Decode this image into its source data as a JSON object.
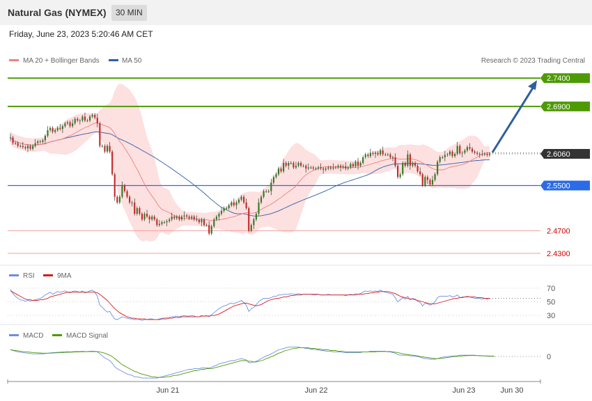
{
  "header": {
    "title": "Natural Gas (NYMEX)",
    "timeframe": "30 MIN",
    "datetime": "Friday, June 23, 2023 5:20:46 AM CET"
  },
  "colors": {
    "ma20": "#f08080",
    "bollinger_fill": "#fde0e0",
    "ma50": "#2f5ea8",
    "resistance": "#4e9a06",
    "support_blue": "#2b6be6",
    "support_red": "#e06060",
    "candle_up": "#2e7d1e",
    "candle_down": "#c62828",
    "current_price_bg": "#333333",
    "arrow": "#2f5e9e",
    "rsi": "#6c8ee0",
    "rsi_ma": "#d81b1b",
    "macd": "#6c8ee0",
    "macd_signal": "#4e9a06"
  },
  "chart_data": [
    {
      "type": "candlestick",
      "legend": [
        "MA 20 + Bollinger Bands",
        "MA 50"
      ],
      "credit": "Research © 2023 Trading Central",
      "x_ticks": [
        "Jun 21",
        "Jun 22",
        "Jun 23",
        "Jun 30"
      ],
      "ylim": [
        2.42,
        2.76
      ],
      "levels": [
        {
          "value": 2.74,
          "label": "2.7400",
          "kind": "resistance"
        },
        {
          "value": 2.69,
          "label": "2.6900",
          "kind": "resistance"
        },
        {
          "value": 2.606,
          "label": "2.6060",
          "kind": "current"
        },
        {
          "value": 2.55,
          "label": "2.5500",
          "kind": "support"
        },
        {
          "value": 2.47,
          "label": "2.4700",
          "kind": "minor"
        },
        {
          "value": 2.43,
          "label": "2.4300",
          "kind": "minor"
        }
      ],
      "close": [
        2.635,
        2.625,
        2.625,
        2.62,
        2.62,
        2.618,
        2.616,
        2.62,
        2.615,
        2.62,
        2.625,
        2.628,
        2.627,
        2.63,
        2.638,
        2.648,
        2.652,
        2.645,
        2.648,
        2.652,
        2.65,
        2.655,
        2.66,
        2.662,
        2.655,
        2.66,
        2.668,
        2.665,
        2.665,
        2.672,
        2.665,
        2.665,
        2.672,
        2.675,
        2.67,
        2.66,
        2.62,
        2.62,
        2.61,
        2.62,
        2.61,
        2.57,
        2.53,
        2.52,
        2.53,
        2.55,
        2.54,
        2.53,
        2.52,
        2.52,
        2.5,
        2.51,
        2.5,
        2.49,
        2.5,
        2.495,
        2.49,
        2.495,
        2.49,
        2.48,
        2.482,
        2.485,
        2.485,
        2.487,
        2.49,
        2.495,
        2.492,
        2.495,
        2.49,
        2.495,
        2.497,
        2.495,
        2.492,
        2.495,
        2.49,
        2.489,
        2.485,
        2.49,
        2.48,
        2.48,
        2.465,
        2.478,
        2.49,
        2.495,
        2.5,
        2.505,
        2.51,
        2.51,
        2.515,
        2.52,
        2.515,
        2.52,
        2.525,
        2.53,
        2.52,
        2.51,
        2.47,
        2.48,
        2.49,
        2.5,
        2.52,
        2.53,
        2.54,
        2.54,
        2.54,
        2.555,
        2.565,
        2.57,
        2.58,
        2.575,
        2.59,
        2.585,
        2.59,
        2.59,
        2.582,
        2.585,
        2.59,
        2.585,
        2.585,
        2.58,
        2.582,
        2.582,
        2.58,
        2.58,
        2.582,
        2.58,
        2.578,
        2.58,
        2.582,
        2.58,
        2.582,
        2.582,
        2.585,
        2.582,
        2.584,
        2.58,
        2.582,
        2.588,
        2.584,
        2.592,
        2.585,
        2.59,
        2.6,
        2.605,
        2.602,
        2.608,
        2.606,
        2.608,
        2.605,
        2.612,
        2.605,
        2.605,
        2.605,
        2.6,
        2.6,
        2.585,
        2.565,
        2.57,
        2.59,
        2.585,
        2.605,
        2.585,
        2.59,
        2.585,
        2.575,
        2.57,
        2.55,
        2.565,
        2.56,
        2.552,
        2.56,
        2.57,
        2.592,
        2.6,
        2.6,
        2.604,
        2.605,
        2.61,
        2.602,
        2.606,
        2.62,
        2.607,
        2.608,
        2.612,
        2.618,
        2.615,
        2.61,
        2.608,
        2.606,
        2.606,
        2.605,
        2.606,
        2.604,
        2.606
      ]
    },
    {
      "type": "line",
      "legend": [
        "RSI",
        "9MA"
      ],
      "y_ticks": [
        70,
        50,
        30
      ],
      "ylim": [
        20,
        80
      ],
      "rsi": [
        68,
        62,
        58,
        55,
        53,
        52,
        51,
        52,
        51,
        52,
        53,
        54,
        55,
        57,
        60,
        62,
        64,
        61,
        63,
        65,
        64,
        65,
        66,
        64,
        63,
        65,
        66,
        65,
        64,
        66,
        63,
        64,
        66,
        67,
        64,
        58,
        45,
        42,
        38,
        35,
        36,
        30,
        25,
        24,
        26,
        28,
        27,
        26,
        25,
        25,
        24,
        25,
        24,
        23,
        24,
        24,
        25,
        25,
        24,
        24,
        25,
        26,
        26,
        27,
        27,
        28,
        28,
        29,
        28,
        29,
        30,
        29,
        29,
        30,
        29,
        28,
        28,
        30,
        29,
        30,
        28,
        31,
        34,
        37,
        40,
        42,
        44,
        45,
        47,
        48,
        47,
        49,
        50,
        52,
        49,
        45,
        36,
        40,
        42,
        46,
        50,
        53,
        55,
        55,
        55,
        56,
        58,
        58,
        60,
        60,
        61,
        61,
        61,
        62,
        61,
        61,
        62,
        61,
        61,
        61,
        61,
        61,
        60,
        60,
        61,
        60,
        60,
        60,
        61,
        60,
        60,
        60,
        60,
        60,
        60,
        59,
        60,
        61,
        60,
        62,
        61,
        62,
        64,
        66,
        65,
        66,
        65,
        66,
        65,
        67,
        65,
        64,
        63,
        62,
        61,
        56,
        50,
        53,
        56,
        54,
        58,
        53,
        55,
        54,
        51,
        49,
        44,
        48,
        47,
        45,
        47,
        50,
        56,
        58,
        58,
        58,
        58,
        59,
        57,
        58,
        60,
        56,
        57,
        57,
        58,
        57,
        56,
        55,
        55,
        55,
        54,
        55,
        54,
        55
      ],
      "ma9": [
        66,
        64,
        62,
        60,
        58,
        56,
        54,
        53,
        53,
        52,
        52,
        52,
        53,
        53,
        54,
        55,
        57,
        58,
        59,
        60,
        61,
        62,
        63,
        64,
        64,
        64,
        64,
        64,
        64,
        64,
        64,
        64,
        64,
        64,
        64,
        63,
        61,
        58,
        55,
        52,
        48,
        44,
        40,
        37,
        34,
        32,
        30,
        28,
        27,
        26,
        26,
        25,
        25,
        25,
        25,
        24,
        24,
        24,
        24,
        24,
        24,
        25,
        25,
        25,
        26,
        26,
        27,
        27,
        27,
        28,
        28,
        28,
        28,
        28,
        28,
        28,
        28,
        29,
        29,
        29,
        29,
        30,
        30,
        31,
        32,
        34,
        36,
        38,
        40,
        42,
        44,
        45,
        46,
        47,
        48,
        48,
        47,
        46,
        45,
        44,
        45,
        46,
        48,
        50,
        52,
        53,
        54,
        55,
        55,
        56,
        57,
        57,
        58,
        59,
        59,
        60,
        60,
        60,
        61,
        61,
        61,
        61,
        61,
        61,
        61,
        60,
        60,
        60,
        60,
        60,
        60,
        60,
        60,
        60,
        60,
        60,
        60,
        60,
        60,
        60,
        61,
        61,
        61,
        62,
        62,
        63,
        63,
        64,
        64,
        65,
        65,
        65,
        65,
        64,
        63,
        62,
        60,
        58,
        57,
        56,
        55,
        54,
        54,
        53,
        52,
        51,
        50,
        49,
        48,
        47,
        47,
        47,
        48,
        49,
        50,
        51,
        52,
        53,
        54,
        55,
        55,
        56,
        56,
        57,
        57,
        57,
        57,
        57,
        56,
        56,
        56,
        55,
        55,
        55
      ]
    },
    {
      "type": "line",
      "legend": [
        "MACD",
        "MACD Signal"
      ],
      "y_ticks": [
        0
      ],
      "ylim": [
        -0.035,
        0.025
      ],
      "macd": [
        0.01,
        0.009,
        0.008,
        0.007,
        0.0065,
        0.006,
        0.0055,
        0.005,
        0.0045,
        0.004,
        0.004,
        0.004,
        0.004,
        0.004,
        0.0045,
        0.005,
        0.0055,
        0.006,
        0.006,
        0.0065,
        0.0065,
        0.007,
        0.007,
        0.0072,
        0.007,
        0.0072,
        0.0075,
        0.0075,
        0.0075,
        0.0078,
        0.0075,
        0.0075,
        0.0078,
        0.008,
        0.0078,
        0.007,
        0.004,
        0.001,
        -0.002,
        -0.004,
        -0.006,
        -0.01,
        -0.015,
        -0.018,
        -0.02,
        -0.022,
        -0.024,
        -0.026,
        -0.027,
        -0.028,
        -0.03,
        -0.03,
        -0.031,
        -0.032,
        -0.032,
        -0.032,
        -0.032,
        -0.032,
        -0.032,
        -0.032,
        -0.031,
        -0.03,
        -0.029,
        -0.028,
        -0.027,
        -0.026,
        -0.025,
        -0.024,
        -0.023,
        -0.022,
        -0.021,
        -0.02,
        -0.019,
        -0.019,
        -0.018,
        -0.018,
        -0.018,
        -0.017,
        -0.017,
        -0.017,
        -0.017,
        -0.016,
        -0.014,
        -0.013,
        -0.011,
        -0.01,
        -0.009,
        -0.008,
        -0.007,
        -0.006,
        -0.006,
        -0.005,
        -0.004,
        -0.003,
        -0.004,
        -0.005,
        -0.009,
        -0.009,
        -0.008,
        -0.007,
        -0.005,
        -0.003,
        -0.001,
        0.001,
        0.002,
        0.004,
        0.006,
        0.008,
        0.01,
        0.011,
        0.012,
        0.013,
        0.014,
        0.014,
        0.014,
        0.014,
        0.014,
        0.013,
        0.013,
        0.012,
        0.012,
        0.011,
        0.011,
        0.01,
        0.01,
        0.009,
        0.009,
        0.008,
        0.008,
        0.008,
        0.007,
        0.007,
        0.007,
        0.007,
        0.006,
        0.006,
        0.006,
        0.006,
        0.006,
        0.006,
        0.006,
        0.006,
        0.007,
        0.007,
        0.007,
        0.008,
        0.008,
        0.008,
        0.008,
        0.008,
        0.008,
        0.008,
        0.007,
        0.007,
        0.006,
        0.005,
        0.003,
        0.002,
        0.002,
        0.002,
        0.002,
        0.001,
        0.001,
        0.0005,
        0.0,
        -0.001,
        -0.002,
        -0.003,
        -0.003,
        -0.004,
        -0.004,
        -0.004,
        -0.003,
        -0.002,
        -0.001,
        -0.0005,
        0.0,
        0.0005,
        0.001,
        0.001,
        0.001,
        0.002,
        0.002,
        0.002,
        0.002,
        0.002,
        0.002,
        0.002,
        0.0015,
        0.001,
        0.001,
        0.001,
        0.0005,
        0.0005,
        0.0005,
        0.0005
      ],
      "signal": [
        0.01,
        0.0095,
        0.009,
        0.0085,
        0.008,
        0.0075,
        0.007,
        0.0068,
        0.0065,
        0.006,
        0.0058,
        0.0055,
        0.0053,
        0.005,
        0.005,
        0.005,
        0.005,
        0.0052,
        0.0054,
        0.0056,
        0.0058,
        0.006,
        0.0062,
        0.0064,
        0.0065,
        0.0066,
        0.0068,
        0.0069,
        0.007,
        0.0071,
        0.0072,
        0.0072,
        0.0073,
        0.0074,
        0.0075,
        0.0074,
        0.0068,
        0.006,
        0.005,
        0.0035,
        0.002,
        0.0,
        -0.003,
        -0.006,
        -0.009,
        -0.012,
        -0.014,
        -0.016,
        -0.018,
        -0.02,
        -0.022,
        -0.023,
        -0.025,
        -0.026,
        -0.027,
        -0.028,
        -0.029,
        -0.03,
        -0.03,
        -0.031,
        -0.031,
        -0.031,
        -0.031,
        -0.03,
        -0.03,
        -0.029,
        -0.028,
        -0.028,
        -0.027,
        -0.026,
        -0.025,
        -0.024,
        -0.023,
        -0.022,
        -0.021,
        -0.021,
        -0.02,
        -0.019,
        -0.019,
        -0.018,
        -0.018,
        -0.018,
        -0.017,
        -0.016,
        -0.015,
        -0.014,
        -0.013,
        -0.012,
        -0.011,
        -0.01,
        -0.009,
        -0.008,
        -0.007,
        -0.006,
        -0.006,
        -0.006,
        -0.007,
        -0.007,
        -0.008,
        -0.008,
        -0.007,
        -0.006,
        -0.005,
        -0.003,
        -0.002,
        0.0,
        0.001,
        0.003,
        0.005,
        0.006,
        0.008,
        0.009,
        0.01,
        0.011,
        0.012,
        0.012,
        0.013,
        0.013,
        0.013,
        0.013,
        0.013,
        0.012,
        0.012,
        0.012,
        0.011,
        0.011,
        0.01,
        0.01,
        0.01,
        0.009,
        0.009,
        0.009,
        0.008,
        0.008,
        0.008,
        0.007,
        0.007,
        0.007,
        0.007,
        0.007,
        0.007,
        0.007,
        0.007,
        0.007,
        0.007,
        0.007,
        0.007,
        0.007,
        0.0075,
        0.0075,
        0.0075,
        0.0075,
        0.0075,
        0.0074,
        0.007,
        0.0065,
        0.006,
        0.005,
        0.004,
        0.0035,
        0.003,
        0.0025,
        0.002,
        0.0015,
        0.001,
        0.0,
        -0.0005,
        -0.001,
        -0.0015,
        -0.002,
        -0.0025,
        -0.0028,
        -0.003,
        -0.003,
        -0.0025,
        -0.002,
        -0.0015,
        -0.001,
        -0.0005,
        0.0,
        0.0003,
        0.0006,
        0.001,
        0.0012,
        0.0014,
        0.0015,
        0.0015,
        0.0015,
        0.0015,
        0.0014,
        0.0012,
        0.001,
        0.001,
        0.0008,
        0.0007,
        0.0006
      ]
    }
  ]
}
